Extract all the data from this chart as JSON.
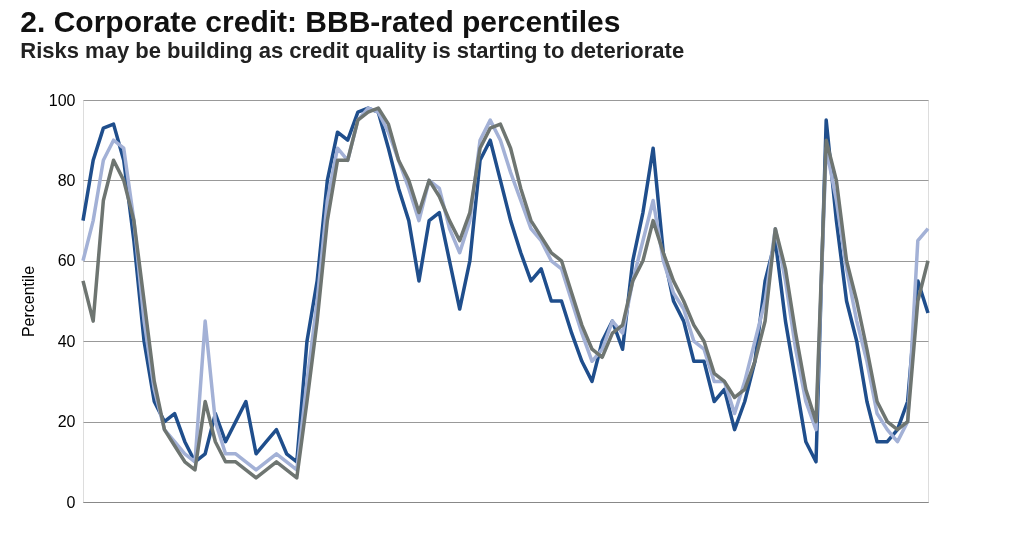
{
  "chart_data": {
    "type": "line",
    "title": "2. Corporate credit: BBB-rated percentiles",
    "subtitle": "Risks may be building as credit quality is starting to deteriorate",
    "ylabel": "Percentile",
    "categories": [
      null,
      null,
      null,
      null,
      null,
      null,
      null,
      null,
      null,
      null,
      null,
      null,
      null,
      null,
      null,
      null,
      null,
      null,
      null,
      null,
      null,
      null,
      null,
      null,
      null,
      null,
      null,
      null,
      null,
      null,
      null,
      null,
      null,
      null,
      null,
      null,
      null,
      null,
      null,
      null,
      null,
      null,
      null,
      null,
      null,
      null,
      null,
      null,
      null,
      null,
      null,
      null,
      null,
      null,
      null,
      null,
      null,
      null,
      null,
      null,
      null,
      null,
      null,
      null,
      null,
      null,
      null,
      null,
      null,
      null,
      null,
      null,
      null,
      null,
      null,
      null,
      null,
      null,
      null,
      null,
      null,
      null,
      null,
      null
    ],
    "series": [
      {
        "color": "#1f4e8c",
        "values": [
          70,
          85,
          93,
          94,
          85,
          65,
          40,
          25,
          20,
          22,
          15,
          10,
          12,
          22,
          15,
          20,
          25,
          12,
          15,
          18,
          12,
          10,
          40,
          55,
          80,
          92,
          90,
          97,
          98,
          97,
          88,
          78,
          70,
          55,
          70,
          72,
          60,
          48,
          60,
          85,
          90,
          80,
          70,
          62,
          55,
          58,
          50,
          50,
          42,
          35,
          30,
          40,
          45,
          38,
          60,
          72,
          88,
          62,
          50,
          45,
          35,
          35,
          25,
          28,
          18,
          25,
          35,
          55,
          65,
          45,
          30,
          15,
          10,
          95,
          70,
          50,
          40,
          25,
          15,
          15,
          18,
          25,
          55,
          47
        ]
      },
      {
        "color": "#a3b1d6",
        "values": [
          60,
          70,
          85,
          90,
          88,
          70,
          45,
          28,
          18,
          15,
          12,
          10,
          45,
          20,
          12,
          12,
          10,
          8,
          10,
          12,
          10,
          8,
          30,
          50,
          75,
          88,
          85,
          95,
          98,
          97,
          92,
          85,
          78,
          70,
          80,
          78,
          68,
          62,
          70,
          90,
          95,
          90,
          82,
          75,
          68,
          65,
          60,
          58,
          50,
          42,
          35,
          38,
          45,
          42,
          55,
          65,
          75,
          60,
          52,
          48,
          40,
          38,
          30,
          30,
          22,
          30,
          40,
          50,
          68,
          55,
          38,
          25,
          18,
          88,
          75,
          58,
          45,
          35,
          22,
          18,
          15,
          20,
          65,
          68
        ]
      },
      {
        "color": "#6e7571",
        "values": [
          55,
          45,
          75,
          85,
          80,
          70,
          50,
          30,
          18,
          14,
          10,
          8,
          25,
          15,
          10,
          10,
          8,
          6,
          8,
          10,
          8,
          6,
          25,
          45,
          70,
          85,
          85,
          95,
          97,
          98,
          94,
          85,
          80,
          72,
          80,
          76,
          70,
          65,
          72,
          88,
          93,
          94,
          88,
          78,
          70,
          66,
          62,
          60,
          52,
          44,
          38,
          36,
          42,
          44,
          55,
          60,
          70,
          62,
          55,
          50,
          44,
          40,
          32,
          30,
          26,
          28,
          35,
          45,
          68,
          58,
          42,
          28,
          20,
          90,
          80,
          60,
          50,
          38,
          25,
          20,
          18,
          20,
          50,
          60
        ]
      }
    ],
    "ylim": [
      0,
      100
    ],
    "yticks": [
      0,
      20,
      40,
      60,
      80,
      100
    ],
    "grid": "y",
    "tick_labels": "y",
    "line_style": "solid",
    "marker": "none"
  }
}
